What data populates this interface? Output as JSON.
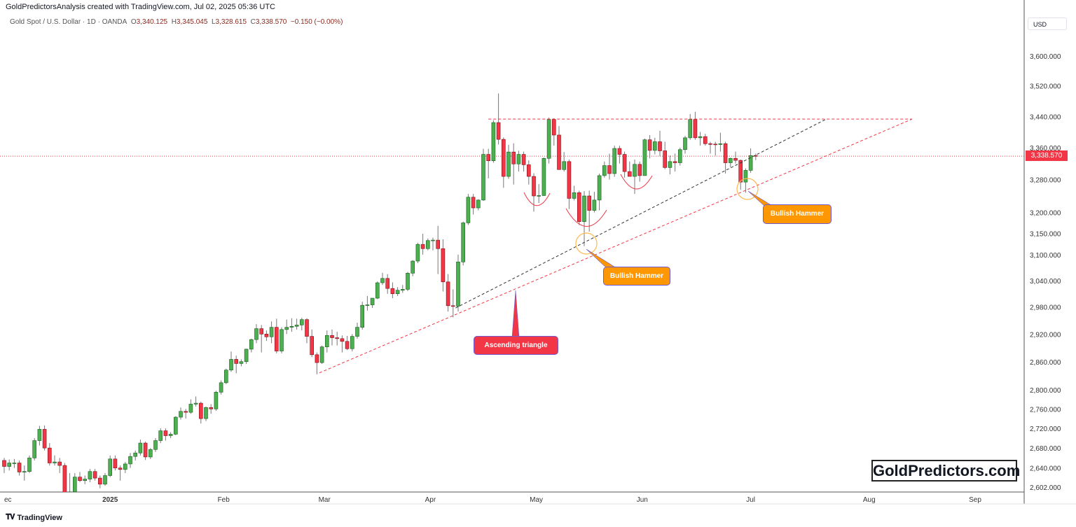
{
  "header": {
    "credit": "GoldPredictorsAnalysis created with TradingView.com, Jul 02, 2025 05:36 UTC"
  },
  "legend": {
    "symbol": "Gold Spot / U.S. Dollar · 1D · OANDA",
    "open_label": "O",
    "open": "3,340.125",
    "high_label": "H",
    "high": "3,345.045",
    "low_label": "L",
    "low": "3,328.615",
    "close_label": "C",
    "close": "3,338.570",
    "change": "−0.150 (−0.00%)"
  },
  "axis": {
    "currency": "USD",
    "last_price": "3,338.570"
  },
  "footer": {
    "tradingview": "TradingView",
    "tv_logo": "TV"
  },
  "brand": "GoldPredictors.com",
  "colors": {
    "up": "#4caf50",
    "down": "#f23645",
    "up_border": "#1b5e20",
    "down_border": "#801018",
    "annotation_orange": "#ff9800",
    "annotation_red": "#f23645"
  },
  "annotations": {
    "hammer1": "Bullish Hammer",
    "hammer2": "Bullish Hammer",
    "triangle": "Ascending triangle"
  },
  "chart_data": {
    "type": "candlestick",
    "title": "Gold Spot / U.S. Dollar · 1D · OANDA",
    "scale": "log",
    "ylim": [
      2602,
      3660
    ],
    "y_ticks": [
      {
        "v": 3600,
        "label": "3,600.000"
      },
      {
        "v": 3520,
        "label": "3,520.000"
      },
      {
        "v": 3440,
        "label": "3,440.000"
      },
      {
        "v": 3360,
        "label": "3,360.000"
      },
      {
        "v": 3280,
        "label": "3,280.000"
      },
      {
        "v": 3200,
        "label": "3,200.000"
      },
      {
        "v": 3150,
        "label": "3,150.000"
      },
      {
        "v": 3100,
        "label": "3,100.000"
      },
      {
        "v": 3040,
        "label": "3,040.000"
      },
      {
        "v": 2980,
        "label": "2,980.000"
      },
      {
        "v": 2920,
        "label": "2,920.000"
      },
      {
        "v": 2860,
        "label": "2,860.000"
      },
      {
        "v": 2800,
        "label": "2,800.000"
      },
      {
        "v": 2760,
        "label": "2,760.000"
      },
      {
        "v": 2720,
        "label": "2,720.000"
      },
      {
        "v": 2680,
        "label": "2,680.000"
      },
      {
        "v": 2640,
        "label": "2,640.000"
      },
      {
        "v": 2602,
        "label": "2,602.000"
      }
    ],
    "x_ticks": [
      {
        "i": 0,
        "label": "ec"
      },
      {
        "i": 21,
        "label": "2025",
        "bold": true
      },
      {
        "i": 43.5,
        "label": "Feb"
      },
      {
        "i": 63.5,
        "label": "Mar"
      },
      {
        "i": 84.5,
        "label": "Apr"
      },
      {
        "i": 105.5,
        "label": "May"
      },
      {
        "i": 126.5,
        "label": "Jun"
      },
      {
        "i": 148,
        "label": "Jul"
      },
      {
        "i": 171.5,
        "label": "Aug"
      },
      {
        "i": 192.5,
        "label": "Sep"
      }
    ],
    "last_price": 3338.57,
    "ohlc": [
      [
        2655,
        2660,
        2630,
        2643
      ],
      [
        2643,
        2657,
        2635,
        2650
      ],
      [
        2650,
        2658,
        2640,
        2650
      ],
      [
        2650,
        2655,
        2625,
        2632
      ],
      [
        2632,
        2645,
        2615,
        2633
      ],
      [
        2633,
        2665,
        2630,
        2660
      ],
      [
        2660,
        2700,
        2655,
        2695
      ],
      [
        2695,
        2725,
        2685,
        2718
      ],
      [
        2718,
        2726,
        2675,
        2680
      ],
      [
        2680,
        2690,
        2645,
        2650
      ],
      [
        2650,
        2665,
        2645,
        2652
      ],
      [
        2652,
        2660,
        2630,
        2645
      ],
      [
        2645,
        2650,
        2583,
        2590
      ],
      [
        2590,
        2630,
        2580,
        2593
      ],
      [
        2593,
        2630,
        2590,
        2622
      ],
      [
        2622,
        2632,
        2612,
        2615
      ],
      [
        2615,
        2625,
        2608,
        2618
      ],
      [
        2618,
        2638,
        2612,
        2633
      ],
      [
        2633,
        2638,
        2615,
        2620
      ],
      [
        2620,
        2625,
        2600,
        2608
      ],
      [
        2608,
        2630,
        2605,
        2625
      ],
      [
        2625,
        2665,
        2622,
        2658
      ],
      [
        2658,
        2665,
        2635,
        2640
      ],
      [
        2640,
        2645,
        2615,
        2637
      ],
      [
        2637,
        2652,
        2630,
        2648
      ],
      [
        2648,
        2670,
        2640,
        2663
      ],
      [
        2663,
        2675,
        2655,
        2670
      ],
      [
        2670,
        2697,
        2665,
        2690
      ],
      [
        2690,
        2693,
        2656,
        2662
      ],
      [
        2662,
        2680,
        2658,
        2677
      ],
      [
        2677,
        2700,
        2672,
        2695
      ],
      [
        2695,
        2720,
        2690,
        2715
      ],
      [
        2715,
        2720,
        2695,
        2705
      ],
      [
        2705,
        2712,
        2700,
        2708
      ],
      [
        2708,
        2745,
        2706,
        2743
      ],
      [
        2743,
        2763,
        2738,
        2755
      ],
      [
        2755,
        2760,
        2740,
        2753
      ],
      [
        2753,
        2780,
        2750,
        2770
      ],
      [
        2770,
        2786,
        2765,
        2772
      ],
      [
        2772,
        2775,
        2730,
        2740
      ],
      [
        2740,
        2765,
        2735,
        2763
      ],
      [
        2763,
        2770,
        2750,
        2760
      ],
      [
        2760,
        2798,
        2756,
        2795
      ],
      [
        2795,
        2820,
        2790,
        2815
      ],
      [
        2815,
        2845,
        2812,
        2842
      ],
      [
        2842,
        2882,
        2838,
        2865
      ],
      [
        2865,
        2873,
        2835,
        2856
      ],
      [
        2856,
        2865,
        2850,
        2860
      ],
      [
        2860,
        2888,
        2855,
        2887
      ],
      [
        2887,
        2910,
        2880,
        2908
      ],
      [
        2908,
        2942,
        2900,
        2932
      ],
      [
        2932,
        2940,
        2880,
        2920
      ],
      [
        2920,
        2928,
        2905,
        2914
      ],
      [
        2914,
        2948,
        2900,
        2935
      ],
      [
        2935,
        2954,
        2878,
        2883
      ],
      [
        2883,
        2935,
        2878,
        2930
      ],
      [
        2930,
        2952,
        2920,
        2935
      ],
      [
        2935,
        2955,
        2925,
        2937
      ],
      [
        2937,
        2954,
        2930,
        2940
      ],
      [
        2940,
        2956,
        2928,
        2952
      ],
      [
        2952,
        2955,
        2900,
        2915
      ],
      [
        2915,
        2930,
        2870,
        2875
      ],
      [
        2875,
        2880,
        2833,
        2858
      ],
      [
        2858,
        2895,
        2855,
        2892
      ],
      [
        2892,
        2928,
        2880,
        2917
      ],
      [
        2917,
        2930,
        2895,
        2912
      ],
      [
        2912,
        2925,
        2895,
        2910
      ],
      [
        2910,
        2917,
        2880,
        2904
      ],
      [
        2904,
        2916,
        2885,
        2888
      ],
      [
        2888,
        2920,
        2882,
        2915
      ],
      [
        2915,
        2945,
        2910,
        2935
      ],
      [
        2935,
        2992,
        2930,
        2984
      ],
      [
        2984,
        3005,
        2972,
        2985
      ],
      [
        2985,
        3000,
        2978,
        3000
      ],
      [
        3000,
        3038,
        2998,
        3035
      ],
      [
        3035,
        3058,
        3030,
        3045
      ],
      [
        3045,
        3055,
        3010,
        3022
      ],
      [
        3022,
        3036,
        3000,
        3010
      ],
      [
        3010,
        3025,
        3005,
        3018
      ],
      [
        3018,
        3030,
        3012,
        3020
      ],
      [
        3020,
        3060,
        3016,
        3057
      ],
      [
        3057,
        3087,
        3050,
        3085
      ],
      [
        3085,
        3128,
        3080,
        3124
      ],
      [
        3124,
        3149,
        3100,
        3114
      ],
      [
        3114,
        3138,
        3110,
        3133
      ],
      [
        3133,
        3140,
        3110,
        3134
      ],
      [
        3134,
        3168,
        3055,
        3114
      ],
      [
        3114,
        3136,
        3015,
        3037
      ],
      [
        3037,
        3055,
        2970,
        2983
      ],
      [
        2983,
        3020,
        2957,
        2982
      ],
      [
        2982,
        3100,
        2970,
        3083
      ],
      [
        3083,
        3178,
        3075,
        3175
      ],
      [
        3175,
        3245,
        3170,
        3237
      ],
      [
        3237,
        3245,
        3195,
        3211
      ],
      [
        3211,
        3232,
        3205,
        3230
      ],
      [
        3230,
        3357,
        3228,
        3343
      ],
      [
        3343,
        3357,
        3283,
        3327
      ],
      [
        3327,
        3430,
        3322,
        3424
      ],
      [
        3424,
        3500,
        3368,
        3381
      ],
      [
        3381,
        3386,
        3260,
        3288
      ],
      [
        3288,
        3367,
        3282,
        3349
      ],
      [
        3349,
        3371,
        3268,
        3319
      ],
      [
        3319,
        3352,
        3300,
        3343
      ],
      [
        3343,
        3350,
        3300,
        3317
      ],
      [
        3317,
        3328,
        3268,
        3288
      ],
      [
        3288,
        3296,
        3202,
        3240
      ],
      [
        3240,
        3269,
        3223,
        3241
      ],
      [
        3241,
        3335,
        3240,
        3333
      ],
      [
        3333,
        3437,
        3320,
        3432
      ],
      [
        3432,
        3435,
        3365,
        3392
      ],
      [
        3392,
        3415,
        3305,
        3305
      ],
      [
        3305,
        3349,
        3300,
        3325
      ],
      [
        3325,
        3330,
        3208,
        3234
      ],
      [
        3234,
        3265,
        3229,
        3248
      ],
      [
        3248,
        3253,
        3170,
        3178
      ],
      [
        3178,
        3252,
        3120,
        3240
      ],
      [
        3240,
        3253,
        3154,
        3205
      ],
      [
        3205,
        3250,
        3200,
        3230
      ],
      [
        3230,
        3295,
        3205,
        3290
      ],
      [
        3290,
        3325,
        3285,
        3315
      ],
      [
        3315,
        3345,
        3280,
        3295
      ],
      [
        3295,
        3365,
        3287,
        3358
      ],
      [
        3358,
        3365,
        3320,
        3343
      ],
      [
        3343,
        3350,
        3285,
        3300
      ],
      [
        3300,
        3325,
        3290,
        3288
      ],
      [
        3288,
        3330,
        3245,
        3318
      ],
      [
        3318,
        3325,
        3275,
        3290
      ],
      [
        3290,
        3383,
        3290,
        3380
      ],
      [
        3380,
        3392,
        3333,
        3353
      ],
      [
        3353,
        3385,
        3343,
        3375
      ],
      [
        3375,
        3403,
        3338,
        3352
      ],
      [
        3352,
        3375,
        3306,
        3310
      ],
      [
        3310,
        3340,
        3293,
        3325
      ],
      [
        3325,
        3345,
        3300,
        3322
      ],
      [
        3322,
        3360,
        3315,
        3355
      ],
      [
        3355,
        3390,
        3345,
        3385
      ],
      [
        3385,
        3446,
        3380,
        3432
      ],
      [
        3432,
        3452,
        3380,
        3385
      ],
      [
        3385,
        3400,
        3365,
        3388
      ],
      [
        3388,
        3395,
        3365,
        3370
      ],
      [
        3370,
        3375,
        3345,
        3369
      ],
      [
        3369,
        3375,
        3340,
        3368
      ],
      [
        3368,
        3398,
        3350,
        3370
      ],
      [
        3370,
        3375,
        3295,
        3322
      ],
      [
        3322,
        3335,
        3311,
        3333
      ],
      [
        3333,
        3350,
        3320,
        3328
      ],
      [
        3328,
        3330,
        3255,
        3274
      ],
      [
        3274,
        3308,
        3248,
        3303
      ],
      [
        3303,
        3358,
        3297,
        3340
      ],
      [
        3340.125,
        3345.045,
        3328.615,
        3338.57
      ]
    ],
    "trendlines": [
      {
        "name": "resistance",
        "color": "#f23645",
        "from": [
          96,
          3433
        ],
        "to": [
          180,
          3433
        ]
      },
      {
        "name": "support-inner",
        "color": "#333333",
        "from": [
          89.5,
          2978
        ],
        "to": [
          163,
          3433
        ]
      },
      {
        "name": "support-outer",
        "color": "#f23645",
        "from": [
          62.5,
          2836
        ],
        "to": [
          180,
          3433
        ]
      }
    ]
  }
}
